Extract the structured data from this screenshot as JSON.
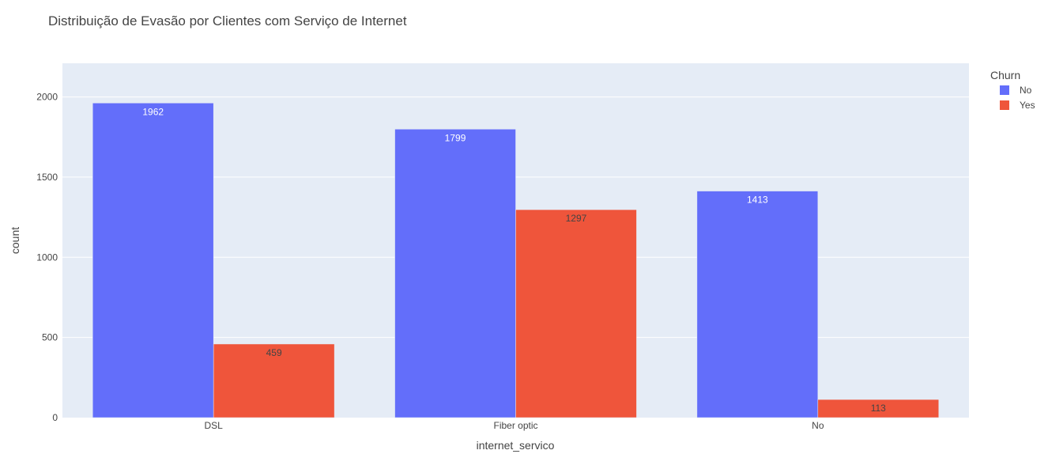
{
  "chart_data": {
    "type": "bar",
    "barmode": "group",
    "title": "Distribuição de Evasão por Clientes com Serviço de Internet",
    "xlabel": "internet_servico",
    "ylabel": "count",
    "categories": [
      "DSL",
      "Fiber optic",
      "No"
    ],
    "series": [
      {
        "name": "No",
        "values": [
          1962,
          1799,
          1413
        ],
        "color": "#636efa",
        "label_color": "#ffffff"
      },
      {
        "name": "Yes",
        "values": [
          459,
          1297,
          113
        ],
        "color": "#ef553b",
        "label_color": "#444444"
      }
    ],
    "ylim": [
      0,
      2210
    ],
    "yticks": [
      0,
      500,
      1000,
      1500,
      2000
    ],
    "grid": true,
    "plot_background": "#e5ecf6",
    "legend": {
      "title": "Churn",
      "placement": "top-right, outside plot"
    }
  }
}
